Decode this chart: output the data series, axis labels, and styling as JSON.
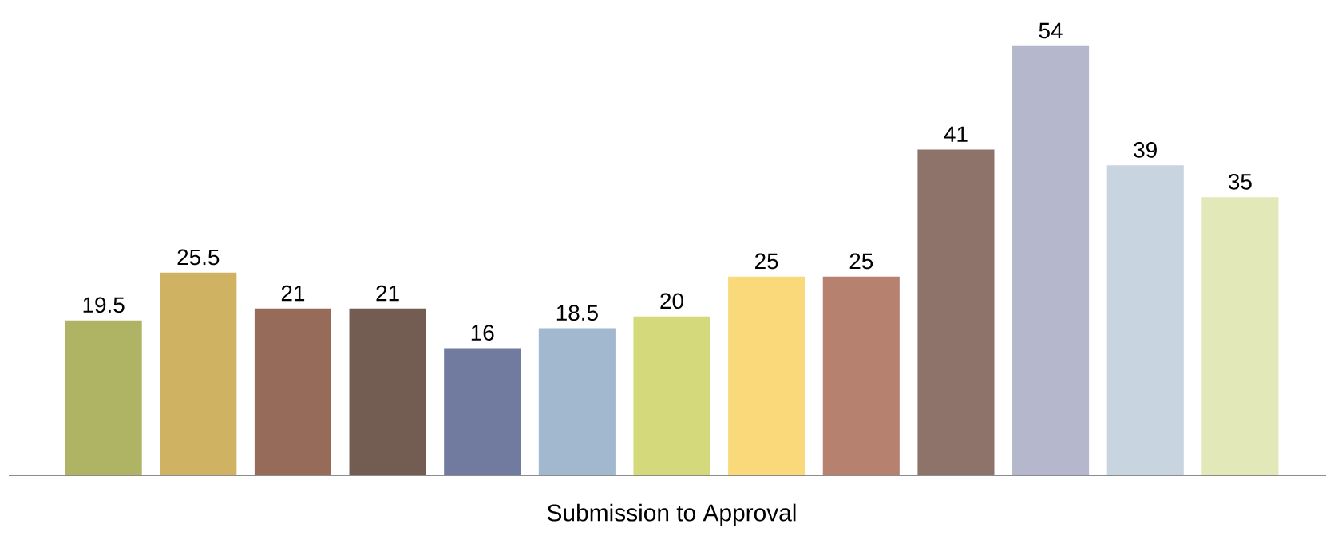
{
  "chart_data": {
    "type": "bar",
    "xlabel": "Submission to Approval",
    "categories": [
      null,
      null,
      null,
      null,
      null,
      null,
      null,
      null,
      null,
      null,
      null,
      null,
      null
    ],
    "values": [
      19.5,
      25.5,
      21,
      21,
      16,
      18.5,
      20,
      25,
      25,
      41,
      54,
      39,
      35
    ],
    "colors": [
      "#afb464",
      "#cfb262",
      "#966b5a",
      "#735c52",
      "#717ba0",
      "#a2b8cf",
      "#d4d97c",
      "#f9d97a",
      "#b6826f",
      "#8e736a",
      "#b5b7cc",
      "#c8d4e0",
      "#e2e8b8"
    ],
    "data_labels": true
  }
}
